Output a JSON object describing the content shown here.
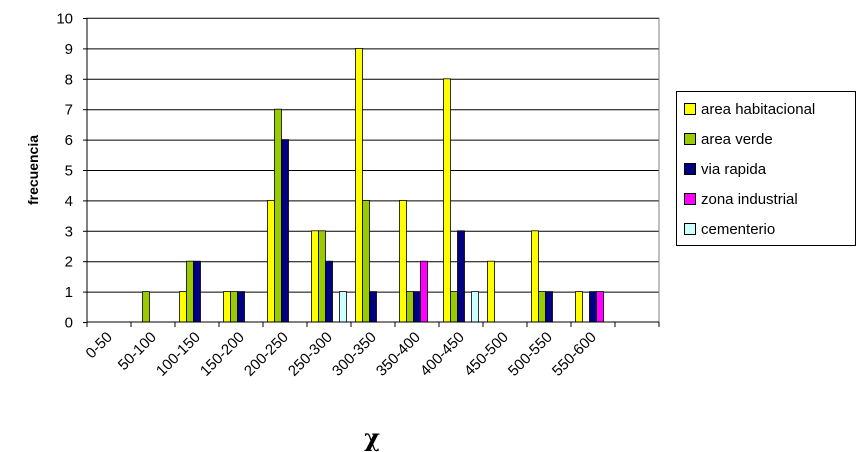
{
  "chart_data": {
    "type": "bar",
    "ylabel": "frecuencia",
    "xlabel": "χ",
    "categories": [
      "0-50",
      "50-100",
      "100-150",
      "150-200",
      "200-250",
      "250-300",
      "300-350",
      "350-400",
      "400-450",
      "450-500",
      "500-550",
      "550-600"
    ],
    "ylim": [
      0,
      10
    ],
    "yticks": [
      0,
      1,
      2,
      3,
      4,
      5,
      6,
      7,
      8,
      9,
      10
    ],
    "grid": true,
    "legend_position": "right",
    "series": [
      {
        "name": "area habitacional",
        "color": "#ffff00",
        "values": [
          0,
          0,
          1,
          1,
          4,
          3,
          9,
          4,
          8,
          2,
          3,
          1
        ]
      },
      {
        "name": "area verde",
        "color": "#99cc00",
        "values": [
          0,
          1,
          2,
          1,
          7,
          3,
          4,
          1,
          1,
          0,
          1,
          0
        ]
      },
      {
        "name": "via rapida",
        "color": "#000080",
        "values": [
          0,
          0,
          2,
          1,
          6,
          2,
          1,
          1,
          3,
          0,
          1,
          1
        ]
      },
      {
        "name": "zona industrial",
        "color": "#ff00ff",
        "values": [
          0,
          0,
          0,
          0,
          0,
          0,
          0,
          2,
          0,
          0,
          0,
          1
        ]
      },
      {
        "name": "cementerio",
        "color": "#ccffff",
        "values": [
          0,
          0,
          0,
          0,
          0,
          1,
          0,
          0,
          1,
          0,
          0,
          0
        ]
      }
    ]
  }
}
